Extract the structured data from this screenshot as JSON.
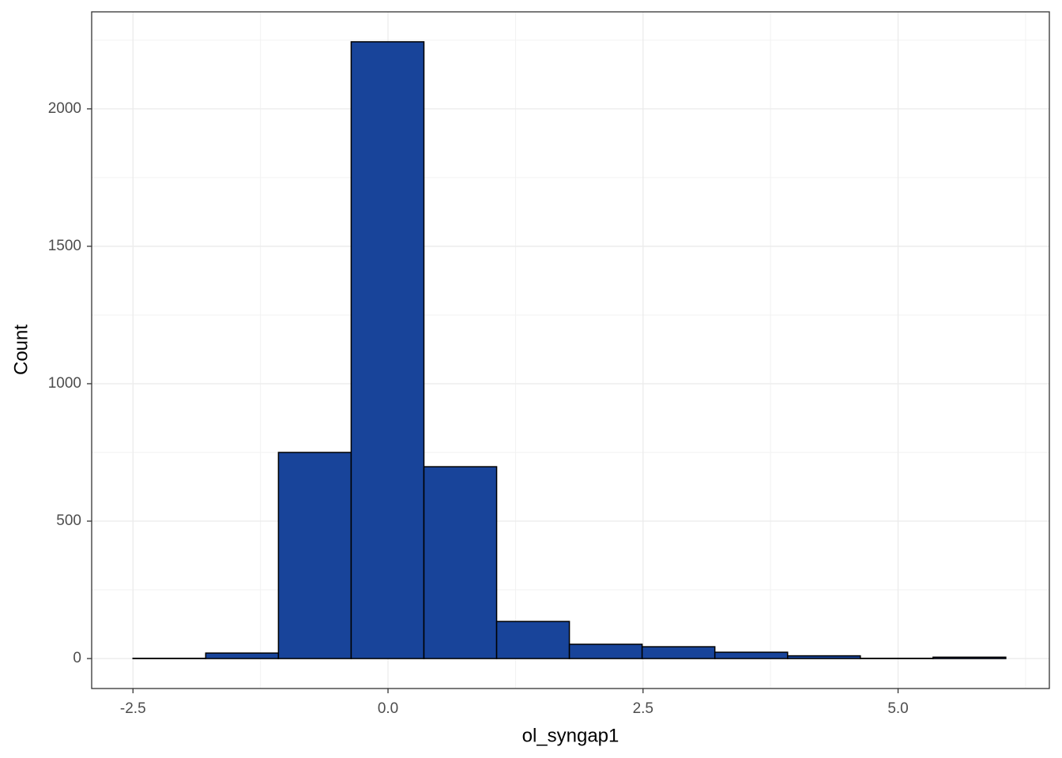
{
  "chart_data": {
    "type": "histogram",
    "x_label": "ol_syngap1",
    "y_label": "Count",
    "bins": [
      -2.5,
      -1.787,
      -1.074,
      -0.361,
      0.352,
      1.065,
      1.778,
      2.491,
      3.204,
      3.917,
      4.63,
      5.343,
      6.056
    ],
    "counts": [
      1,
      20,
      750,
      2244,
      698,
      135,
      52,
      43,
      23,
      10,
      1,
      5
    ],
    "color": "#18449a",
    "xlim": [
      -2.905,
      6.483
    ],
    "xticks": [
      {
        "value": -2.5,
        "label": "-2.5"
      },
      {
        "value": 0,
        "label": "0.0"
      },
      {
        "value": 2.5,
        "label": "2.5"
      },
      {
        "value": 5,
        "label": "5.0"
      }
    ],
    "ylim": [
      -109,
      2353
    ],
    "yticks": [
      0,
      500,
      1000,
      1500,
      2000
    ],
    "grid": true
  }
}
